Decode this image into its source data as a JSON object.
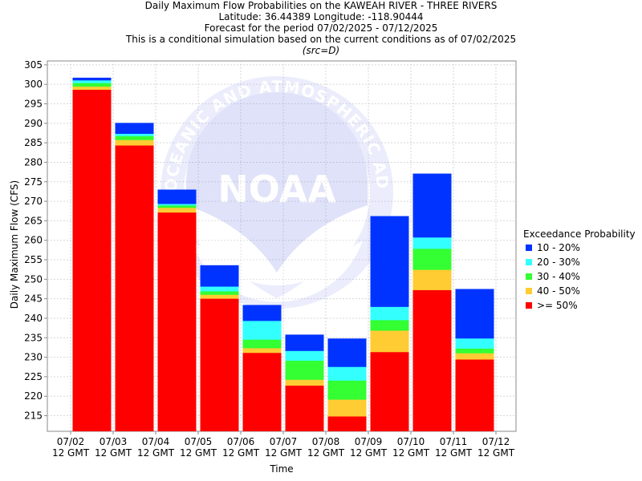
{
  "titles": {
    "line1": "Daily Maximum Flow Probabilities on the KAWEAH RIVER - THREE RIVERS",
    "line2": "Latitude: 36.44389 Longitude: -118.90444",
    "line3": "Forecast for the period 07/02/2025 - 07/12/2025",
    "line4": "This is a conditional simulation based on the current conditions as of 07/02/2025",
    "line5": "(src=D)"
  },
  "watermark": {
    "text": "NOAA",
    "ring_text": "OCEANIC AND ATMOSPHERIC ADMINISTRATION"
  },
  "legend": {
    "title": "Exceedance Probability",
    "items": [
      {
        "label": "10 - 20%",
        "color": "#0033ff"
      },
      {
        "label": "20 - 30%",
        "color": "#33ffff"
      },
      {
        "label": "30 - 40%",
        "color": "#33ff33"
      },
      {
        "label": "40 - 50%",
        "color": "#ffcc33"
      },
      {
        "label": ">= 50%",
        "color": "#ff0000"
      }
    ]
  },
  "chart_data": {
    "type": "bar",
    "stacked": true,
    "xlabel": "Time",
    "ylabel": "Daily Maximum Flow (CFS)",
    "ylim": [
      211,
      306
    ],
    "yticks": [
      215,
      220,
      225,
      230,
      235,
      240,
      245,
      250,
      255,
      260,
      265,
      270,
      275,
      280,
      285,
      290,
      295,
      300,
      305
    ],
    "grid": true,
    "legend_position": "right",
    "xticks": [
      {
        "date": "07/02",
        "time": "12 GMT"
      },
      {
        "date": "07/03",
        "time": "12 GMT"
      },
      {
        "date": "07/04",
        "time": "12 GMT"
      },
      {
        "date": "07/05",
        "time": "12 GMT"
      },
      {
        "date": "07/06",
        "time": "12 GMT"
      },
      {
        "date": "07/07",
        "time": "12 GMT"
      },
      {
        "date": "07/08",
        "time": "12 GMT"
      },
      {
        "date": "07/09",
        "time": "12 GMT"
      },
      {
        "date": "07/10",
        "time": "12 GMT"
      },
      {
        "date": "07/11",
        "time": "12 GMT"
      },
      {
        "date": "07/12",
        "time": "12 GMT"
      }
    ],
    "bars": [
      {
        "period": "07/02 - 07/03",
        "p50": 298.6,
        "p40": 299.4,
        "p30": 300.3,
        "p20": 301.0,
        "p10": 301.7
      },
      {
        "period": "07/03 - 07/04",
        "p50": 284.3,
        "p40": 285.7,
        "p30": 286.7,
        "p20": 287.3,
        "p10": 290.1
      },
      {
        "period": "07/04 - 07/05",
        "p50": 267.1,
        "p40": 268.3,
        "p30": 268.9,
        "p20": 269.3,
        "p10": 273.0
      },
      {
        "period": "07/05 - 07/06",
        "p50": 245.0,
        "p40": 246.0,
        "p30": 246.9,
        "p20": 248.1,
        "p10": 253.6
      },
      {
        "period": "07/06 - 07/07",
        "p50": 231.1,
        "p40": 232.3,
        "p30": 234.5,
        "p20": 239.3,
        "p10": 243.4
      },
      {
        "period": "07/07 - 07/08",
        "p50": 222.7,
        "p40": 224.2,
        "p30": 229.1,
        "p20": 231.6,
        "p10": 235.8
      },
      {
        "period": "07/08 - 07/09",
        "p50": 214.8,
        "p40": 219.1,
        "p30": 224.0,
        "p20": 227.5,
        "p10": 234.8
      },
      {
        "period": "07/09 - 07/10",
        "p50": 231.3,
        "p40": 236.8,
        "p30": 239.5,
        "p20": 242.9,
        "p10": 266.2
      },
      {
        "period": "07/10 - 07/11",
        "p50": 247.2,
        "p40": 252.4,
        "p30": 257.8,
        "p20": 260.7,
        "p10": 277.1
      },
      {
        "period": "07/11 - 07/12",
        "p50": 229.4,
        "p40": 231.0,
        "p30": 232.2,
        "p20": 234.8,
        "p10": 247.5
      }
    ]
  }
}
